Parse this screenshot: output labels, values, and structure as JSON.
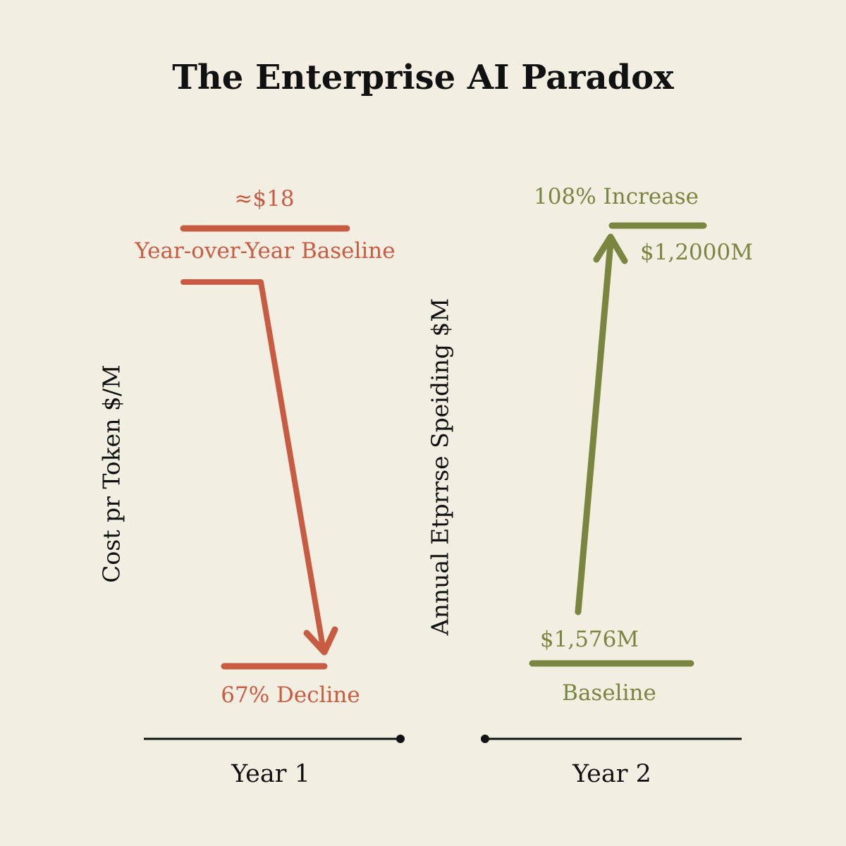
{
  "title": "The Enterprise AI Paradox",
  "colors": {
    "decline": "#c85c42",
    "increase": "#7a8640",
    "axis": "#111111",
    "background": "#f2eee2"
  },
  "left_panel": {
    "axis_label": "Cost pr Token $/M",
    "top_value": "≈$18",
    "top_caption": "Year-over-Year Baseline",
    "bottom_caption": "67% Decline",
    "period": "Year 1",
    "direction": "down"
  },
  "right_panel": {
    "axis_label": "Annual Etprrse Speiding $M",
    "top_caption": "108% Increase",
    "top_value": "$1,2000M",
    "bottom_value": "$1,576M",
    "bottom_caption": "Baseline",
    "period": "Year 2",
    "direction": "up"
  }
}
